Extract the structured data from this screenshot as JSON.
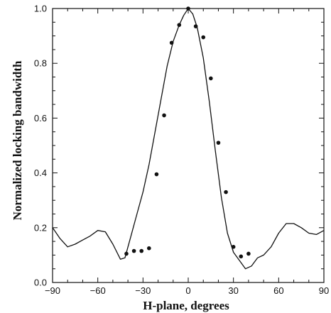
{
  "chart_data": {
    "type": "line",
    "title": "",
    "xlabel": "H-plane,  degrees",
    "ylabel": "Normalized locking bandwidth",
    "xlim": [
      -90,
      90
    ],
    "ylim": [
      0.0,
      1.0
    ],
    "x_ticks": [
      -90,
      -60,
      -30,
      0,
      30,
      60,
      90
    ],
    "x_tick_labels": [
      "−90",
      "−60",
      "−30",
      "0",
      "30",
      "60",
      "90"
    ],
    "y_ticks": [
      0.0,
      0.2,
      0.4,
      0.6,
      0.8,
      1.0
    ],
    "y_tick_labels": [
      "0.0",
      "0.2",
      "0.4",
      "0.6",
      "0.8",
      "1.0"
    ],
    "grid": false,
    "legend": "none",
    "series": [
      {
        "style": "line",
        "x": [
          -90,
          -85,
          -80,
          -75,
          -70,
          -65,
          -60,
          -55,
          -50,
          -45,
          -42,
          -38,
          -34,
          -30,
          -26,
          -22,
          -18,
          -14,
          -10,
          -6,
          -3,
          0,
          3,
          6,
          10,
          14,
          18,
          22,
          26,
          30,
          34,
          38,
          42,
          46,
          50,
          55,
          60,
          65,
          70,
          75,
          80,
          85,
          90
        ],
        "y": [
          0.2,
          0.16,
          0.13,
          0.14,
          0.155,
          0.17,
          0.19,
          0.185,
          0.14,
          0.085,
          0.09,
          0.17,
          0.25,
          0.33,
          0.43,
          0.55,
          0.67,
          0.79,
          0.88,
          0.94,
          0.975,
          1.0,
          0.98,
          0.93,
          0.82,
          0.66,
          0.48,
          0.31,
          0.18,
          0.11,
          0.08,
          0.05,
          0.06,
          0.09,
          0.1,
          0.13,
          0.18,
          0.215,
          0.215,
          0.2,
          0.18,
          0.175,
          0.19
        ]
      },
      {
        "style": "scatter",
        "x": [
          -41,
          -36,
          -31,
          -26,
          -21,
          -16,
          -11,
          -6,
          0,
          5,
          10,
          15,
          20,
          25,
          30,
          35,
          40
        ],
        "y": [
          0.105,
          0.115,
          0.115,
          0.125,
          0.395,
          0.61,
          0.875,
          0.94,
          1.0,
          0.935,
          0.895,
          0.745,
          0.51,
          0.33,
          0.13,
          0.095,
          0.105
        ]
      }
    ]
  }
}
